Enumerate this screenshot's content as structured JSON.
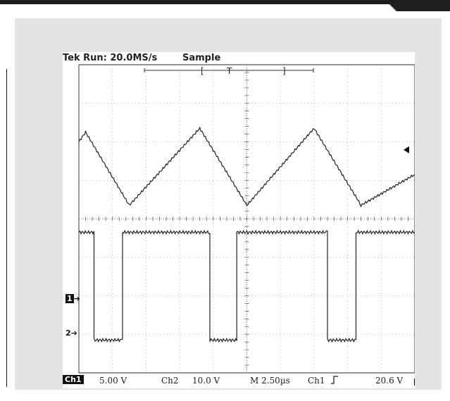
{
  "scope": {
    "status": "Tek Run: 20.0MS/s",
    "acquisition_mode": "Sample",
    "trigger_window_label": "T",
    "readouts": {
      "ch1_tag": "Ch1",
      "ch1_scale": "5.00 V",
      "ch2_label": "Ch2",
      "ch2_scale": "10.0 V",
      "timebase": "M 2.50µs",
      "trigger_source": "Ch1",
      "trigger_slope_icon": "rising-edge-icon",
      "trigger_level": "20.6 V"
    },
    "markers": {
      "ch1": "1",
      "ch2": "2"
    }
  },
  "chart_data": {
    "type": "line",
    "title": "",
    "xlabel": "",
    "ylabel": "",
    "xlim": [
      0,
      10
    ],
    "ylim": [
      -4,
      4
    ],
    "grid": true,
    "x_unit": "div",
    "y_unit": "div",
    "series": [
      {
        "channel": "Ch1",
        "shape": "triangle",
        "x": [
          0,
          0.2,
          1.5,
          3.6,
          5.0,
          7.0,
          8.4,
          10.0
        ],
        "y": [
          2.0,
          2.25,
          0.35,
          2.35,
          0.35,
          2.35,
          0.35,
          1.15
        ]
      },
      {
        "channel": "Ch2",
        "shape": "square",
        "x": [
          0,
          0.45,
          0.45,
          1.3,
          1.3,
          3.9,
          3.9,
          4.7,
          4.7,
          7.4,
          7.4,
          8.25,
          8.25,
          10.0
        ],
        "y": [
          -0.35,
          -0.35,
          -3.15,
          -3.15,
          -0.35,
          -0.35,
          -3.15,
          -3.15,
          -0.35,
          -0.35,
          -3.15,
          -3.15,
          -0.35,
          -0.35
        ]
      }
    ]
  }
}
